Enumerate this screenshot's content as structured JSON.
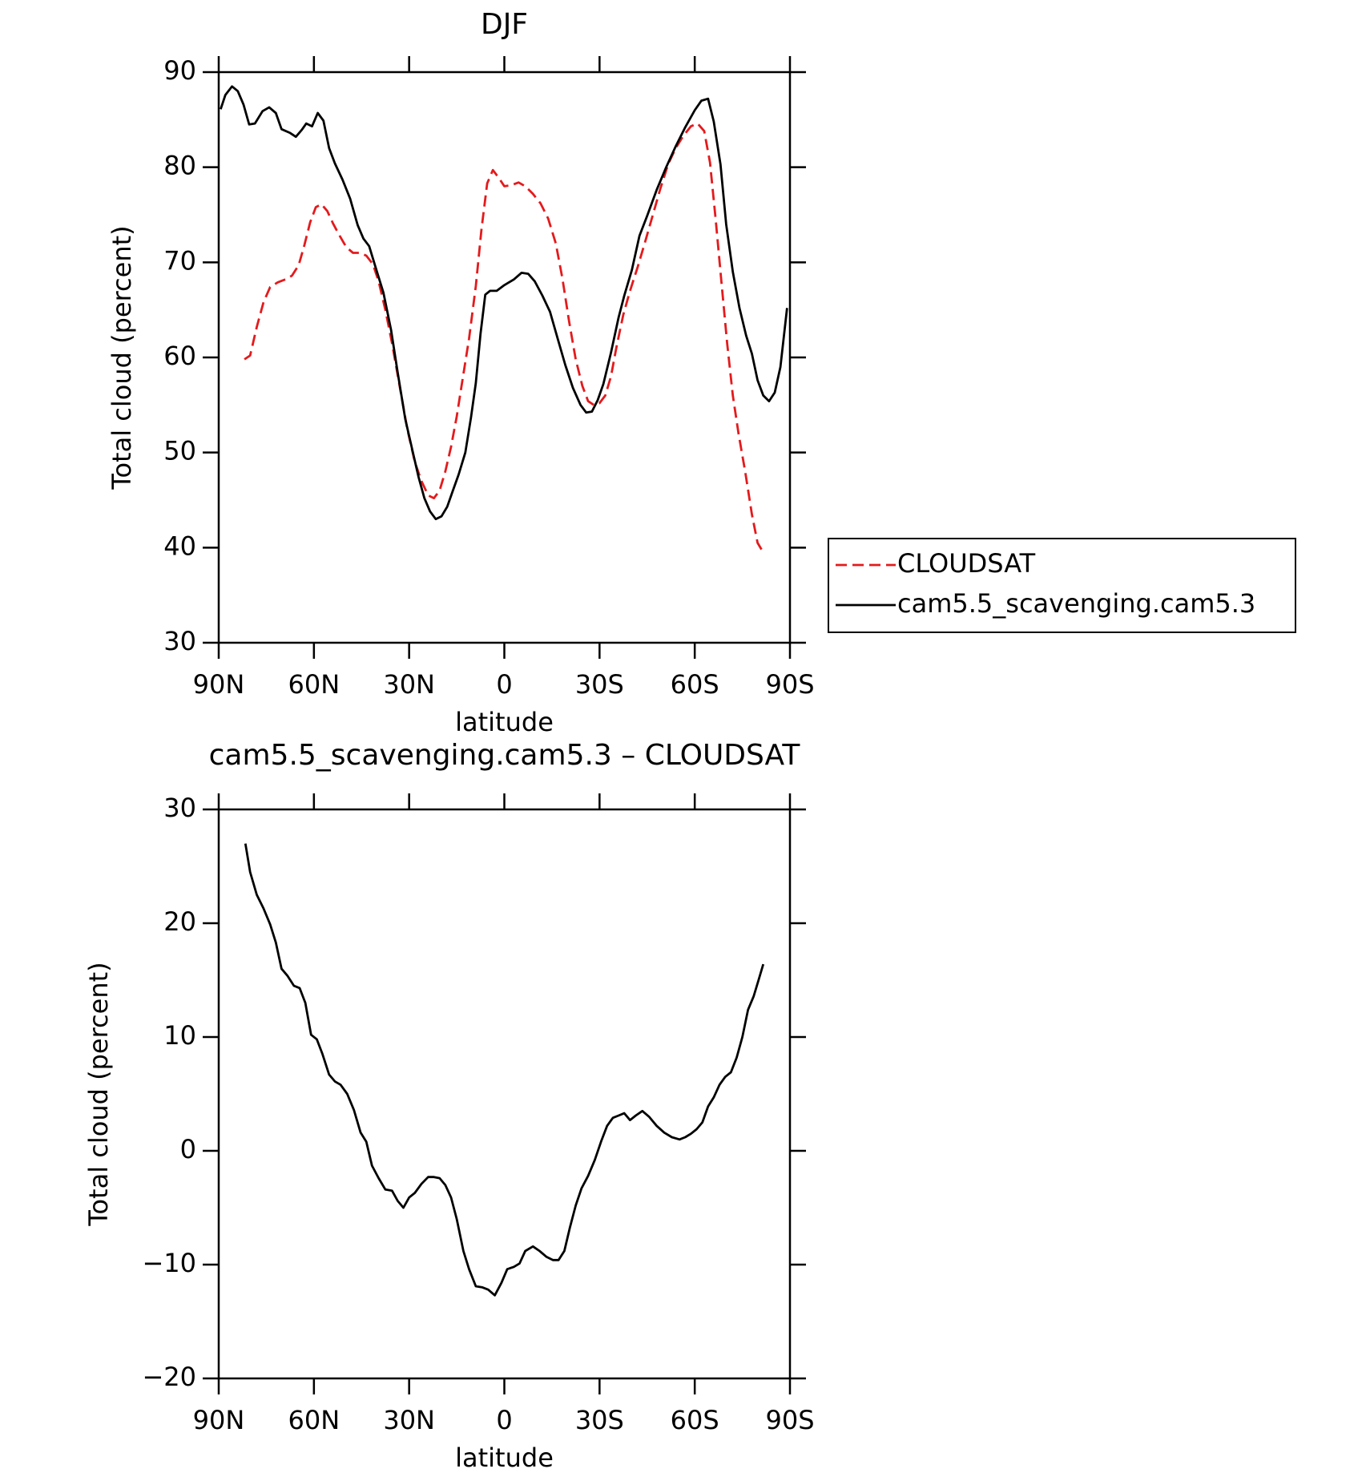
{
  "chart_data": [
    {
      "type": "line",
      "title": "DJF",
      "x_label": "latitude",
      "y_label": "Total cloud (percent)",
      "xlim": [
        90,
        -90
      ],
      "xticks": [
        {
          "value": 90,
          "label": "90N"
        },
        {
          "value": 60,
          "label": "60N"
        },
        {
          "value": 30,
          "label": "30N"
        },
        0,
        {
          "value": -30,
          "label": "30S"
        },
        {
          "value": -60,
          "label": "60S"
        },
        {
          "value": -90,
          "label": "90S"
        }
      ],
      "ylim": [
        30,
        90
      ],
      "yticks": [
        30,
        40,
        50,
        60,
        70,
        80,
        90
      ],
      "legend": "right",
      "series": [
        {
          "name": "CLOUDSAT",
          "color": "#e41a1c",
          "line_style": "dashed",
          "x": [
            81.9,
            80.1,
            78.0,
            75.9,
            73.8,
            71.4,
            69.0,
            66.9,
            64.8,
            63.0,
            61.2,
            59.4,
            57.6,
            55.8,
            54.0,
            51.9,
            49.8,
            47.7,
            45.6,
            43.5,
            41.4,
            39.6,
            37.5,
            35.4,
            33.0,
            30.6,
            28.2,
            26.1,
            24.0,
            22.2,
            20.4,
            18.6,
            16.8,
            15.0,
            13.2,
            11.1,
            9.0,
            7.2,
            5.4,
            3.6,
            1.8,
            0,
            -2.1,
            -4.5,
            -6.6,
            -9.0,
            -11.4,
            -13.8,
            -16.2,
            -18.3,
            -20.4,
            -22.5,
            -24.6,
            -26.4,
            -28.2,
            -30.0,
            -31.8,
            -33.6,
            -35.4,
            -37.5,
            -39.6,
            -42.0,
            -44.4,
            -46.8,
            -49.2,
            -51.6,
            -54.0,
            -56.4,
            -58.8,
            -60.9,
            -63.0,
            -64.8,
            -66.6,
            -68.4,
            -70.2,
            -72.0,
            -73.8,
            -75.9,
            -78.0,
            -79.8,
            -81.6
          ],
          "values": [
            59.8,
            60.2,
            63.2,
            65.8,
            67.4,
            67.9,
            68.2,
            68.6,
            69.7,
            71.8,
            74.2,
            75.8,
            76.1,
            75.4,
            74.1,
            72.8,
            71.6,
            71.0,
            71.0,
            70.7,
            69.8,
            68.0,
            65.0,
            61.5,
            57.0,
            52.5,
            49.0,
            47.0,
            45.5,
            45.2,
            46.0,
            48.0,
            50.6,
            53.8,
            57.6,
            62.0,
            67.5,
            73.5,
            78.3,
            79.7,
            78.9,
            78.0,
            78.1,
            78.4,
            78.0,
            77.2,
            76.2,
            74.6,
            72.0,
            68.3,
            63.8,
            59.8,
            57.0,
            55.4,
            55.0,
            55.2,
            56.0,
            58.0,
            61.2,
            64.5,
            67.0,
            69.5,
            72.2,
            75.0,
            77.8,
            80.3,
            82.0,
            83.3,
            84.3,
            84.6,
            83.8,
            80.5,
            74.5,
            68.0,
            61.5,
            56.0,
            52.0,
            48.0,
            43.5,
            40.5,
            39.5
          ]
        },
        {
          "name": "cam5.5_scavenging.cam5.3",
          "color": "#000000",
          "line_style": "solid",
          "x": [
            89.4,
            87.9,
            85.8,
            84.0,
            82.2,
            80.4,
            78.6,
            76.2,
            74.1,
            72.0,
            70.2,
            67.5,
            65.7,
            63.9,
            62.4,
            60.6,
            58.8,
            57.0,
            55.2,
            53.4,
            51.0,
            48.6,
            46.2,
            44.4,
            42.6,
            40.5,
            38.1,
            35.7,
            33.6,
            31.2,
            28.8,
            27.0,
            25.2,
            23.4,
            21.6,
            19.8,
            18.0,
            16.2,
            14.4,
            12.3,
            10.5,
            9.0,
            7.5,
            6.0,
            4.5,
            2.4,
            0,
            -3.0,
            -5.4,
            -7.5,
            -9.6,
            -12.0,
            -14.4,
            -16.8,
            -19.2,
            -21.6,
            -24.0,
            -25.8,
            -27.6,
            -29.4,
            -31.2,
            -33.6,
            -36.0,
            -37.8,
            -40.2,
            -42.6,
            -45.0,
            -48.0,
            -51.0,
            -54.0,
            -57.0,
            -60.0,
            -62.1,
            -64.2,
            -66.0,
            -68.1,
            -69.9,
            -72.0,
            -74.1,
            -76.2,
            -78.0,
            -79.8,
            -81.6,
            -83.4,
            -85.2,
            -87.0,
            -89.1
          ],
          "values": [
            86.1,
            87.6,
            88.5,
            88.0,
            86.6,
            84.5,
            84.6,
            85.9,
            86.3,
            85.7,
            84.0,
            83.6,
            83.2,
            83.9,
            84.6,
            84.3,
            85.7,
            84.9,
            82.0,
            80.4,
            78.7,
            76.7,
            73.9,
            72.5,
            71.7,
            69.4,
            66.8,
            62.9,
            58.4,
            53.5,
            50.0,
            47.4,
            45.2,
            43.8,
            43.0,
            43.3,
            44.3,
            46.0,
            47.7,
            50.0,
            53.7,
            57.3,
            62.5,
            66.6,
            67.0,
            67.0,
            67.6,
            68.2,
            68.9,
            68.8,
            68.0,
            66.5,
            64.8,
            62.0,
            59.2,
            56.8,
            55.0,
            54.2,
            54.3,
            55.5,
            57.2,
            60.5,
            64.2,
            66.5,
            69.2,
            72.8,
            74.9,
            77.6,
            80.0,
            82.2,
            84.2,
            86.0,
            87.0,
            87.2,
            84.8,
            80.3,
            74.0,
            69.0,
            65.2,
            62.3,
            60.4,
            57.6,
            56.0,
            55.4,
            56.3,
            59.0,
            65.2
          ]
        }
      ]
    },
    {
      "type": "line",
      "title": "cam5.5_scavenging.cam5.3 – CLOUDSAT",
      "x_label": "latitude",
      "y_label": "Total cloud (percent)",
      "xlim": [
        90,
        -90
      ],
      "xticks": [
        {
          "value": 90,
          "label": "90N"
        },
        {
          "value": 60,
          "label": "60N"
        },
        {
          "value": 30,
          "label": "30N"
        },
        0,
        {
          "value": -30,
          "label": "30S"
        },
        {
          "value": -60,
          "label": "60S"
        },
        {
          "value": -90,
          "label": "90S"
        }
      ],
      "ylim": [
        -20,
        30
      ],
      "yticks": [
        {
          "value": -20,
          "label": "−20"
        },
        {
          "value": -10,
          "label": "−10"
        },
        0,
        10,
        20,
        30
      ],
      "series": [
        {
          "color": "#000000",
          "line_style": "solid",
          "x": [
            81.6,
            80.1,
            78.0,
            75.9,
            73.8,
            72.0,
            70.2,
            68.4,
            66.3,
            64.5,
            62.7,
            60.9,
            59.1,
            57.3,
            55.2,
            53.4,
            51.6,
            49.5,
            47.4,
            45.3,
            43.5,
            41.7,
            39.6,
            37.5,
            35.4,
            33.6,
            31.8,
            30.0,
            28.2,
            26.1,
            24.0,
            22.2,
            20.4,
            18.6,
            16.8,
            15.0,
            12.9,
            11.1,
            9.0,
            6.9,
            5.1,
            3.0,
            0.9,
            -0.9,
            -3.0,
            -4.8,
            -6.6,
            -9.0,
            -11.1,
            -13.2,
            -15.3,
            -17.1,
            -18.9,
            -20.7,
            -22.5,
            -24.3,
            -26.4,
            -28.5,
            -30.6,
            -32.4,
            -34.2,
            -36.0,
            -37.8,
            -39.6,
            -41.4,
            -43.5,
            -45.6,
            -48.0,
            -50.4,
            -52.8,
            -55.2,
            -57.0,
            -58.8,
            -60.6,
            -62.4,
            -64.2,
            -66.0,
            -67.8,
            -69.6,
            -71.4,
            -73.2,
            -75.0,
            -76.8,
            -78.6,
            -80.1,
            -81.6
          ],
          "values": [
            27.0,
            24.5,
            22.5,
            21.3,
            19.9,
            18.3,
            16.0,
            15.4,
            14.5,
            14.3,
            13.0,
            10.2,
            9.8,
            8.5,
            6.7,
            6.1,
            5.8,
            5.0,
            3.6,
            1.6,
            0.8,
            -1.3,
            -2.4,
            -3.4,
            -3.5,
            -4.4,
            -5.0,
            -4.1,
            -3.7,
            -2.9,
            -2.3,
            -2.3,
            -2.4,
            -3.0,
            -4.1,
            -6.0,
            -8.8,
            -10.4,
            -11.9,
            -12.0,
            -12.2,
            -12.7,
            -11.6,
            -10.4,
            -10.2,
            -9.9,
            -8.8,
            -8.4,
            -8.8,
            -9.3,
            -9.6,
            -9.6,
            -8.8,
            -6.7,
            -4.8,
            -3.3,
            -2.2,
            -0.8,
            0.9,
            2.2,
            2.9,
            3.1,
            3.3,
            2.7,
            3.1,
            3.5,
            3.0,
            2.2,
            1.6,
            1.2,
            1.0,
            1.2,
            1.5,
            1.9,
            2.5,
            3.9,
            4.7,
            5.8,
            6.5,
            6.9,
            8.2,
            10.0,
            12.4,
            13.6,
            15.0,
            16.4
          ]
        }
      ]
    }
  ]
}
